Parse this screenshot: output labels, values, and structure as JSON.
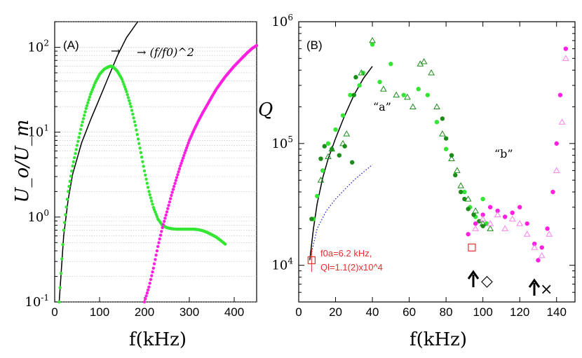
{
  "chart_data": [
    {
      "type": "scatter",
      "panel_label": "(A)",
      "ylabel": "U_o/U_m",
      "xlabel": "f(kHz)",
      "x_ticks": [
        0,
        100,
        200,
        300,
        400
      ],
      "xlim": [
        0,
        450
      ],
      "y_scale": "log",
      "ylim": [
        0.1,
        200
      ],
      "y_ticks": [
        "10^{-1}",
        "10^{0}",
        "10^{1}",
        "10^{2}"
      ],
      "grid": "y-minor",
      "annotation": "→ (f/f0)^2",
      "series": [
        {
          "name": "(f/f0)^2",
          "style": "line",
          "color": "#000000",
          "x": [
            10,
            20,
            30,
            40,
            60,
            80,
            100,
            120,
            140,
            160,
            185
          ],
          "y": [
            0.1,
            0.6,
            1.6,
            3.2,
            7.5,
            14,
            25,
            45,
            80,
            130,
            200
          ]
        },
        {
          "name": "green",
          "style": "dots",
          "color": "#33e633",
          "x": [
            10,
            20,
            30,
            40,
            50,
            60,
            70,
            80,
            90,
            100,
            110,
            120,
            125,
            130,
            140,
            150,
            160,
            170,
            180,
            190,
            200,
            210,
            220,
            230,
            240,
            250,
            260,
            270,
            280,
            290,
            300,
            310,
            320,
            330,
            340,
            350,
            360,
            370,
            380
          ],
          "y": [
            0.1,
            0.7,
            2.0,
            4.0,
            7.0,
            12,
            19,
            28,
            38,
            48,
            55,
            59,
            60,
            59,
            52,
            42,
            30,
            20,
            12,
            6.5,
            3.5,
            2.0,
            1.3,
            0.95,
            0.8,
            0.75,
            0.73,
            0.72,
            0.72,
            0.72,
            0.72,
            0.72,
            0.71,
            0.69,
            0.66,
            0.62,
            0.58,
            0.53,
            0.48
          ]
        },
        {
          "name": "magenta",
          "style": "dots",
          "color": "#ff1fe0",
          "x": [
            200,
            210,
            220,
            230,
            240,
            250,
            260,
            270,
            280,
            290,
            300,
            310,
            320,
            330,
            340,
            350,
            360,
            370,
            380,
            390,
            400,
            410,
            420,
            430,
            440,
            450
          ],
          "y": [
            0.1,
            0.15,
            0.25,
            0.45,
            0.75,
            1.15,
            1.8,
            2.7,
            4.0,
            5.7,
            8.0,
            10.5,
            13.5,
            17,
            21,
            26,
            32,
            38,
            45,
            52,
            60,
            68,
            77,
            87,
            97,
            105
          ]
        }
      ]
    },
    {
      "type": "scatter",
      "panel_label": "(B)",
      "ylabel": "Q",
      "xlabel": "f(kHz)",
      "x_ticks": [
        0,
        20,
        40,
        60,
        80,
        100,
        120,
        140
      ],
      "xlim": [
        0,
        150
      ],
      "y_scale": "log",
      "ylim": [
        5000,
        1000000
      ],
      "y_ticks": [
        "10^{4}",
        "10^{5}",
        "10^{6}"
      ],
      "labels": {
        "a": "“a”",
        "b": "“b”"
      },
      "note_line1": "f0a=6.2 kHz,",
      "note_line2": "Ql=1.1(2)x10^4",
      "markers_legend": {
        "diamond": "◇",
        "cross": "×"
      },
      "series": [
        {
          "name": "fit a",
          "style": "line",
          "color": "#000000",
          "x": [
            6,
            8,
            10,
            13,
            16,
            20,
            25,
            30,
            35,
            40
          ],
          "y": [
            11000,
            20000,
            32000,
            52000,
            75000,
            110000,
            170000,
            250000,
            340000,
            430000
          ]
        },
        {
          "name": "dotted fit",
          "style": "dotted",
          "color": "#2222cc",
          "x": [
            6,
            10,
            15,
            20,
            25,
            30,
            35,
            40
          ],
          "y": [
            11000,
            20000,
            28000,
            35000,
            42000,
            50000,
            58000,
            67000
          ]
        },
        {
          "name": "light green circles",
          "style": "circle-filled",
          "color": "#33e633",
          "x": [
            8,
            10,
            13,
            16,
            20,
            24,
            28,
            33,
            35,
            40,
            44,
            50,
            57,
            65,
            70,
            75,
            80,
            90,
            93,
            96,
            100,
            102
          ],
          "y": [
            24000,
            37000,
            60000,
            100000,
            130000,
            170000,
            250000,
            300000,
            380000,
            650000,
            320000,
            450000,
            250000,
            280000,
            250000,
            150000,
            90000,
            40000,
            30000,
            25000,
            35000,
            22000
          ]
        },
        {
          "name": "dark green circles",
          "style": "circle-filled",
          "color": "#1a8c1a",
          "x": [
            7,
            12,
            14,
            18,
            22,
            25,
            29,
            30,
            31,
            78,
            80,
            83,
            85,
            88,
            90,
            92,
            95,
            98,
            100
          ],
          "y": [
            24000,
            75000,
            95000,
            90000,
            80000,
            95000,
            70000,
            250000,
            350000,
            160000,
            110000,
            80000,
            55000,
            40000,
            35000,
            29000,
            26000,
            23000,
            21000
          ]
        },
        {
          "name": "green triangles",
          "style": "triangle-open",
          "color": "#1a8c1a",
          "x": [
            12,
            16,
            18,
            24,
            26,
            34,
            40,
            46,
            53,
            59,
            62,
            66,
            68,
            72,
            75,
            78,
            83,
            86,
            88,
            92,
            96,
            100,
            104
          ],
          "y": [
            50000,
            78000,
            90000,
            100000,
            120000,
            380000,
            700000,
            280000,
            250000,
            240000,
            200000,
            450000,
            470000,
            380000,
            200000,
            120000,
            75000,
            60000,
            45000,
            35000,
            28000,
            22000,
            20000
          ]
        },
        {
          "name": "magenta circles",
          "style": "circle-filled",
          "color": "#ff1fe0",
          "x": [
            92,
            96,
            100,
            104,
            108,
            112,
            116,
            120,
            124,
            128,
            130,
            132,
            135,
            138,
            140,
            142,
            145
          ],
          "y": [
            18000,
            22000,
            26000,
            30000,
            28000,
            25000,
            27000,
            30000,
            22000,
            15000,
            11000,
            14000,
            20000,
            40000,
            100000,
            250000,
            600000
          ]
        },
        {
          "name": "light magenta triangles",
          "style": "triangle-open",
          "color": "#ff80f0",
          "x": [
            96,
            100,
            104,
            108,
            112,
            116,
            120,
            124,
            128,
            132,
            136,
            140,
            143,
            145
          ],
          "y": [
            20000,
            24000,
            22000,
            26000,
            20000,
            24000,
            22000,
            18000,
            14000,
            12000,
            18000,
            60000,
            150000,
            500000
          ]
        }
      ],
      "special_points": [
        {
          "name": "red open square",
          "x": 7,
          "y": 11000,
          "color": "#e62e2e"
        },
        {
          "name": "red open square 2",
          "x": 94,
          "y": 14000,
          "color": "#e62e2e"
        }
      ]
    }
  ]
}
